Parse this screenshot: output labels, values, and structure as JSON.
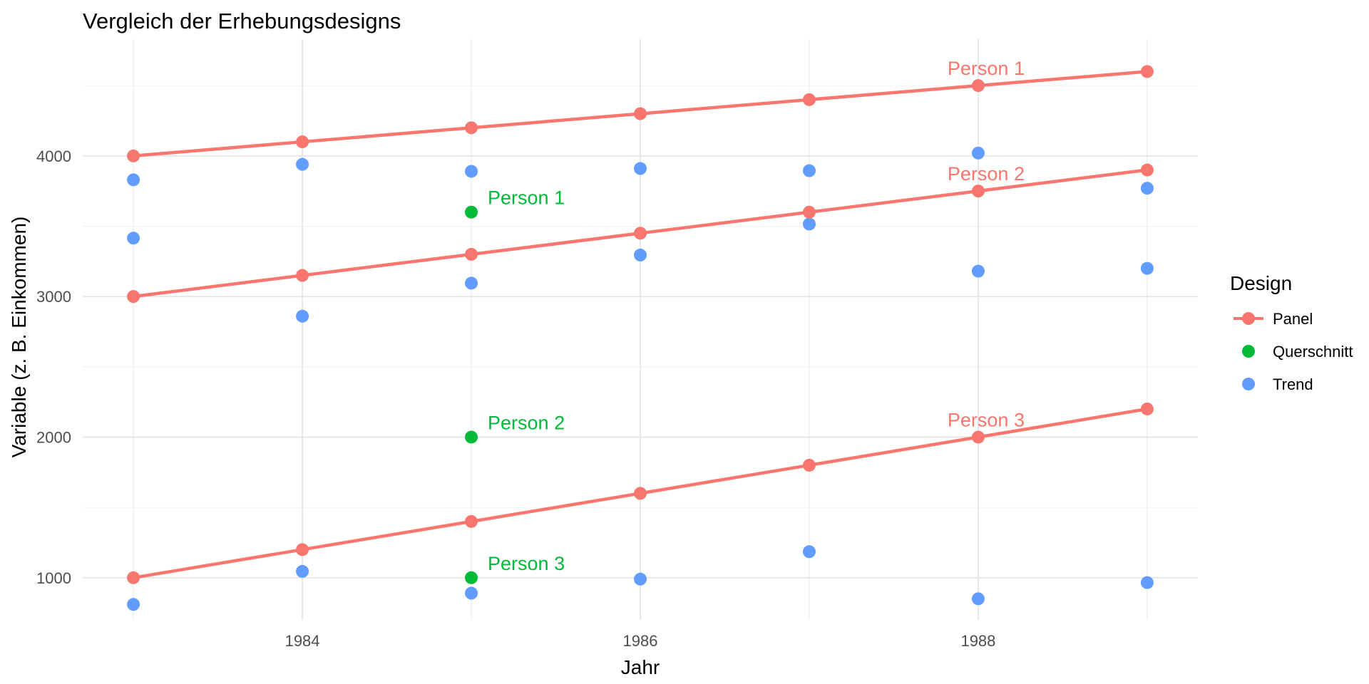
{
  "chart_data": {
    "type": "line",
    "title": "Vergleich der Erhebungsdesigns",
    "xlabel": "Jahr",
    "ylabel": "Variable (z. B. Einkommen)",
    "xlim": [
      1982.7,
      1989.3
    ],
    "ylim": [
      700,
      4830
    ],
    "x_ticks": [
      1984,
      1986,
      1988
    ],
    "x_minor_ticks": [
      1983,
      1985,
      1987,
      1989
    ],
    "y_ticks": [
      1000,
      2000,
      3000,
      4000
    ],
    "y_minor_ticks": [
      1500,
      2500,
      3500,
      4500
    ],
    "grid": true,
    "legend": {
      "title": "Design",
      "position": "right",
      "entries": [
        {
          "label": "Panel",
          "color": "#F8766D",
          "marker": "line-point"
        },
        {
          "label": "Querschnitt",
          "color": "#00BA38",
          "marker": "point"
        },
        {
          "label": "Trend",
          "color": "#619CFF",
          "marker": "point"
        }
      ]
    },
    "series": [
      {
        "group": "Panel",
        "color": "#F8766D",
        "label": "Person 1",
        "label_at": [
          1988,
          4500
        ],
        "points": [
          [
            1983,
            4000
          ],
          [
            1984,
            4100
          ],
          [
            1985,
            4200
          ],
          [
            1986,
            4300
          ],
          [
            1987,
            4400
          ],
          [
            1988,
            4500
          ],
          [
            1989,
            4600
          ]
        ]
      },
      {
        "group": "Panel",
        "color": "#F8766D",
        "label": "Person 2",
        "label_at": [
          1988,
          3750
        ],
        "points": [
          [
            1983,
            3000
          ],
          [
            1984,
            3150
          ],
          [
            1985,
            3300
          ],
          [
            1986,
            3450
          ],
          [
            1987,
            3600
          ],
          [
            1988,
            3750
          ],
          [
            1989,
            3900
          ]
        ]
      },
      {
        "group": "Panel",
        "color": "#F8766D",
        "label": "Person 3",
        "label_at": [
          1988,
          2000
        ],
        "points": [
          [
            1983,
            1000
          ],
          [
            1984,
            1200
          ],
          [
            1985,
            1400
          ],
          [
            1986,
            1600
          ],
          [
            1987,
            1800
          ],
          [
            1988,
            2000
          ],
          [
            1989,
            2200
          ]
        ]
      }
    ],
    "querschnitt": {
      "color": "#00BA38",
      "points": [
        {
          "x": 1985,
          "y": 3600,
          "label": "Person 1"
        },
        {
          "x": 1985,
          "y": 2000,
          "label": "Person 2"
        },
        {
          "x": 1985,
          "y": 1000,
          "label": "Person 3"
        }
      ]
    },
    "trend": {
      "color": "#619CFF",
      "points": [
        [
          1983,
          3830
        ],
        [
          1983,
          3415
        ],
        [
          1983,
          810
        ],
        [
          1984,
          3940
        ],
        [
          1984,
          2860
        ],
        [
          1984,
          1045
        ],
        [
          1985,
          3890
        ],
        [
          1985,
          3095
        ],
        [
          1985,
          890
        ],
        [
          1986,
          3910
        ],
        [
          1986,
          3295
        ],
        [
          1986,
          990
        ],
        [
          1987,
          3895
        ],
        [
          1987,
          3515
        ],
        [
          1987,
          1185
        ],
        [
          1988,
          4020
        ],
        [
          1988,
          3180
        ],
        [
          1988,
          850
        ],
        [
          1989,
          3770
        ],
        [
          1989,
          3200
        ],
        [
          1989,
          965
        ]
      ]
    }
  }
}
